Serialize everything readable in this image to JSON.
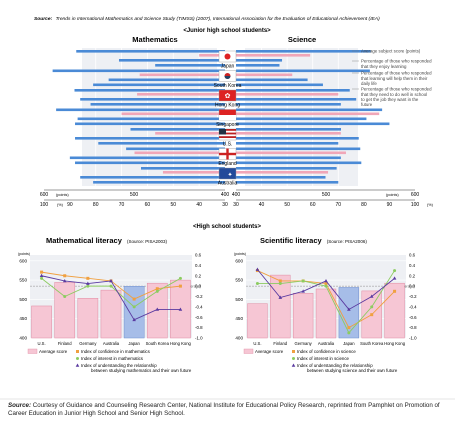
{
  "header": {
    "source_label": "Source:",
    "source_text": "Trends in International Mathematics and Science Study (TIMSS) (2007), International Association for the Evaluation of Educational Achievement (IEA)",
    "section_title": "<Junior high school students>"
  },
  "footer": {
    "source_label": "Source:",
    "source_text": "Courtesy of Guidance and Counseling Research Center, National Institute for Educational Policy Research, reprinted from Pamphlet on Promotion of Career Education in Junior High School and Senior High School."
  },
  "colors": {
    "blue_bar": "#4a8ad6",
    "pink_bar": "#f0a6b8",
    "panel_bg": "#eef0f4",
    "pink_fill": "#f6c6d4",
    "blue_fill": "#a6bde8",
    "orange": "#f0a040",
    "green": "#8ccc60",
    "purple": "#5a3aa0",
    "axis_tag_bg": "#4b8ad0"
  },
  "chart_data": [
    {
      "type": "bar",
      "orientation": "horizontal",
      "mirrored": true,
      "title": "Mathematics",
      "categories": [
        "Japan",
        "South Korea",
        "Hong Kong",
        "Singapore",
        "U.S.",
        "England",
        "Australia"
      ],
      "score_axis": {
        "unit": "(points)",
        "ticks": [
          "600",
          "500",
          "400"
        ],
        "range": [
          400,
          600
        ]
      },
      "percent_axis": {
        "unit": "(%)",
        "ticks": [
          "100",
          "90",
          "80",
          "70",
          "60",
          "50",
          "40",
          "30"
        ],
        "range": [
          30,
          100
        ]
      },
      "series": [
        {
          "name": "Average subject score (points)",
          "unit": "points",
          "values": [
            570,
            597,
            572,
            593,
            508,
            513,
            496
          ]
        },
        {
          "name": "Percentage of those who responded that they enjoy learning",
          "unit": "%",
          "values": [
            40,
            63,
            64,
            70,
            57,
            65,
            54
          ]
        },
        {
          "name": "Percentage of those who responded that learning will help them in their daily life",
          "unit": "%",
          "values": [
            71,
            75,
            86,
            87,
            88,
            90,
            86
          ]
        },
        {
          "name": "Percentage of those who responded that they need to do well in school to get the job they want in the future",
          "unit": "%",
          "values": [
            57,
            81,
            82,
            88,
            79,
            88,
            81
          ]
        }
      ]
    },
    {
      "type": "bar",
      "orientation": "horizontal",
      "title": "Science",
      "categories": [
        "Japan",
        "South Korea",
        "Hong Kong",
        "Singapore",
        "U.S.",
        "England",
        "Australia"
      ],
      "score_axis": {
        "unit": "(points)",
        "ticks": [
          "400",
          "500",
          "600"
        ],
        "range": [
          400,
          600
        ]
      },
      "percent_axis": {
        "unit": "(%)",
        "ticks": [
          "30",
          "40",
          "50",
          "60",
          "70",
          "80",
          "90",
          "100"
        ],
        "range": [
          30,
          100
        ]
      },
      "series": [
        {
          "name": "Average subject score (points)",
          "unit": "points",
          "values": [
            554,
            553,
            530,
            567,
            520,
            542,
            515
          ]
        },
        {
          "name": "Percentage of those who responded that they enjoy learning",
          "unit": "%",
          "values": [
            59,
            52,
            70,
            86,
            71,
            73,
            66
          ]
        },
        {
          "name": "Percentage of those who responded that learning will help them in their daily life",
          "unit": "%",
          "values": [
            48,
            58,
            77,
            81,
            78,
            71,
            65
          ]
        },
        {
          "name": "Percentage of those who responded that they need to do well in school to get the job they want in the future",
          "unit": "%",
          "values": [
            47,
            64,
            71,
            90,
            70,
            79,
            70
          ]
        }
      ],
      "legend": [
        "Average subject score (points)",
        "Percentage of those who responded that they enjoy learning",
        "Percentage of those who responded that learning will help them in their daily life",
        "Percentage of those who responded that they need to do well in school to get the job they want in the future"
      ]
    },
    {
      "type": "bar+line",
      "title": "Mathematical literacy",
      "source_note": "(Source: PISA2003)",
      "categories": [
        "U.S.",
        "Finland",
        "Germany",
        "Australia",
        "Japan",
        "South Korea",
        "Hong Kong"
      ],
      "left_axis": {
        "unit": "(points)",
        "ticks": [
          "600",
          "550",
          "500",
          "450",
          "400"
        ],
        "range": [
          400,
          600
        ]
      },
      "right_axis": {
        "ticks": [
          "0.6",
          "0.4",
          "0.2",
          "0.0",
          "-0.2",
          "-0.4",
          "-0.6",
          "-0.8",
          "-1.0"
        ],
        "range": [
          -1.0,
          0.6
        ]
      },
      "oecd_label": "(OECD average)",
      "highlight_index": 4,
      "bars": {
        "name": "Average score",
        "values": [
          483,
          544,
          503,
          524,
          534,
          542,
          550
        ]
      },
      "series": [
        {
          "name": "Index of confidence in mathematics",
          "values": [
            0.27,
            0.2,
            0.15,
            0.1,
            -0.25,
            -0.05,
            0.0
          ]
        },
        {
          "name": "Index of interest in mathematics",
          "values": [
            0.15,
            -0.2,
            0.0,
            0.0,
            -0.4,
            -0.1,
            0.15
          ]
        },
        {
          "name": "Index of understanding the relationship between studying mathematics and their own future",
          "values": [
            0.2,
            0.1,
            0.05,
            0.1,
            -0.65,
            -0.45,
            -0.45
          ]
        }
      ],
      "legend": [
        "Average score",
        "Index of confidence in mathematics",
        "Index of interest in mathematics",
        "Index of understanding the relationship between studying mathematics and their own future"
      ]
    },
    {
      "type": "bar+line",
      "title": "Scientific literacy",
      "source_note": "(Source: PISA2006)",
      "categories": [
        "U.S.",
        "Finland",
        "Germany",
        "Australia",
        "Japan",
        "South Korea",
        "Hong Kong"
      ],
      "left_axis": {
        "unit": "(points)",
        "ticks": [
          "600",
          "550",
          "500",
          "450",
          "400"
        ],
        "range": [
          400,
          600
        ]
      },
      "right_axis": {
        "ticks": [
          "0.6",
          "0.4",
          "0.2",
          "0.0",
          "-0.2",
          "-0.4",
          "-0.6",
          "-0.8",
          "-1.0"
        ],
        "range": [
          -1.0,
          0.6
        ]
      },
      "oecd_label": "(OECD average)",
      "highlight_index": 4,
      "bars": {
        "name": "Average score",
        "values": [
          489,
          563,
          516,
          527,
          531,
          522,
          542
        ]
      },
      "series": [
        {
          "name": "Index of confidence in science",
          "values": [
            0.3,
            0.1,
            0.1,
            0.05,
            -0.8,
            -0.55,
            -0.1
          ]
        },
        {
          "name": "Index of interest in science",
          "values": [
            0.05,
            0.05,
            0.1,
            0.0,
            -0.9,
            -0.4,
            0.3
          ]
        },
        {
          "name": "Index of understanding the relationship between studying science and their own future",
          "values": [
            0.32,
            -0.22,
            -0.1,
            0.1,
            -0.45,
            -0.2,
            0.15
          ]
        }
      ],
      "legend": [
        "Average score",
        "Index of confidence in science",
        "Index of interest in science",
        "Index of understanding the relationship between studying science and their own future"
      ]
    }
  ],
  "high_school": {
    "section_title": "<High school students>"
  }
}
